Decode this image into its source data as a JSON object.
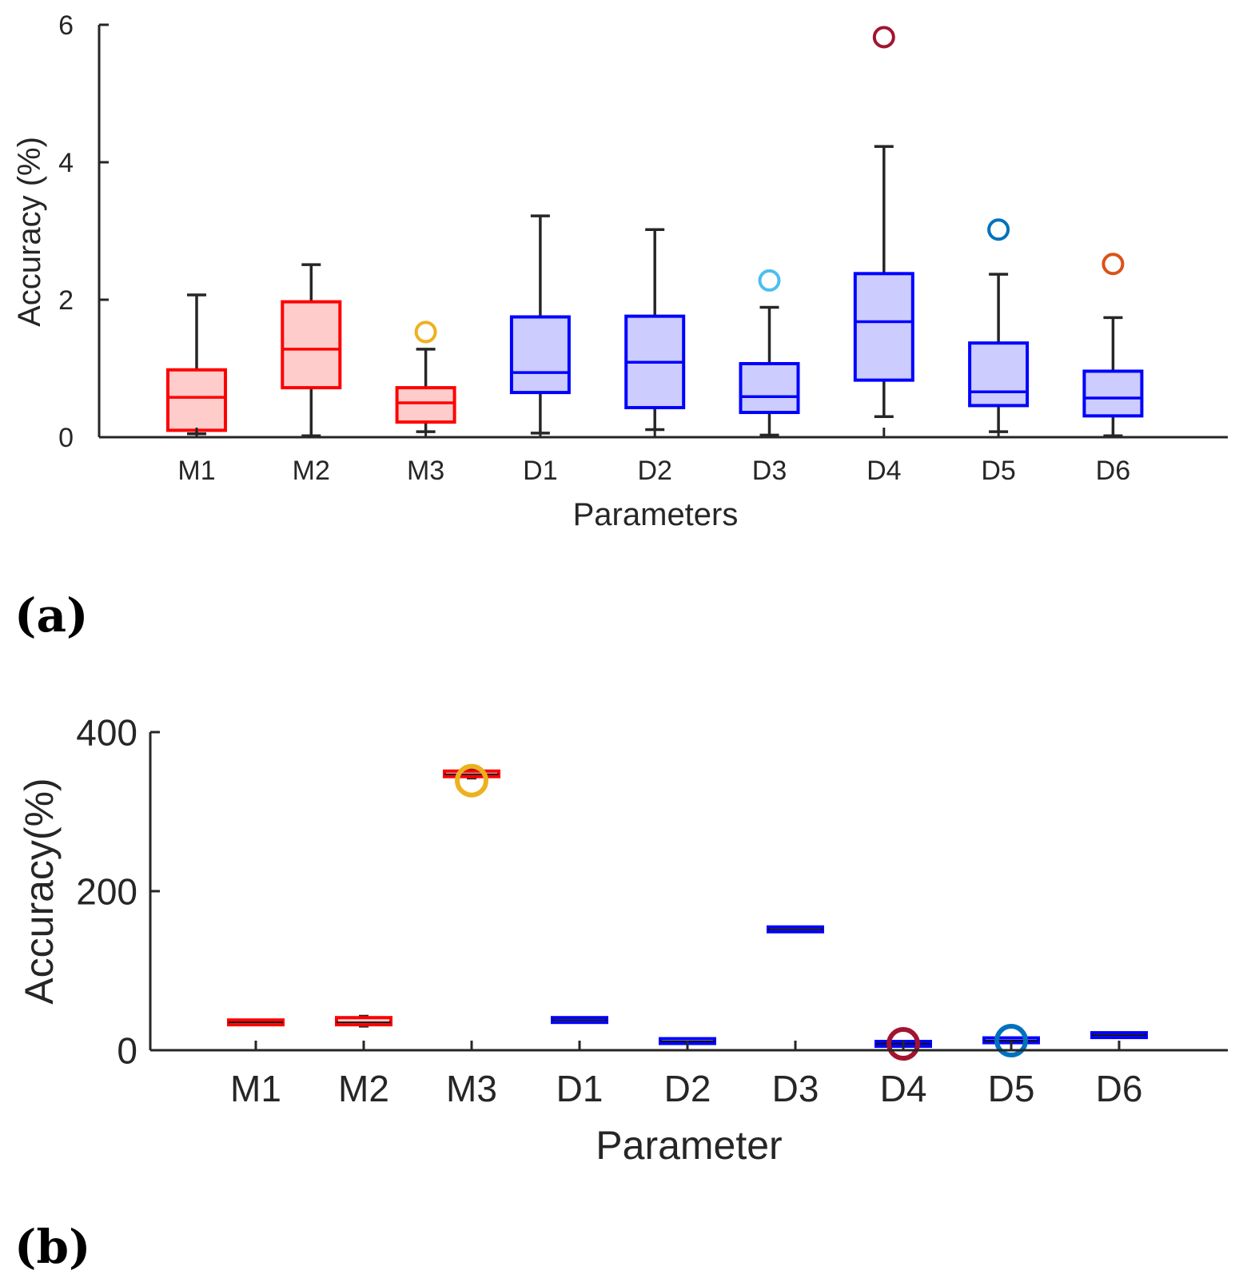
{
  "chart_data": [
    {
      "type": "boxplot",
      "panel_label": "(a)",
      "xlabel": "Parameters",
      "ylabel": "Accuracy (%)",
      "ylim": [
        0,
        6
      ],
      "yticks": [
        "0",
        "2",
        "4",
        "6"
      ],
      "categories": [
        "M1",
        "M2",
        "M3",
        "D1",
        "D2",
        "D3",
        "D4",
        "D5",
        "D6"
      ],
      "boxes": [
        {
          "label": "M1",
          "whisker_low": 0.05,
          "q1": 0.1,
          "median": 0.58,
          "q3": 0.98,
          "whisker_high": 2.07,
          "outliers": [],
          "group": "M"
        },
        {
          "label": "M2",
          "whisker_low": 0.02,
          "q1": 0.72,
          "median": 1.28,
          "q3": 1.97,
          "whisker_high": 2.51,
          "outliers": [],
          "group": "M"
        },
        {
          "label": "M3",
          "whisker_low": 0.08,
          "q1": 0.22,
          "median": 0.5,
          "q3": 0.72,
          "whisker_high": 1.28,
          "outliers": [
            1.53
          ],
          "outlier_color": "#EDB120",
          "group": "M"
        },
        {
          "label": "D1",
          "whisker_low": 0.06,
          "q1": 0.65,
          "median": 0.94,
          "q3": 1.75,
          "whisker_high": 3.22,
          "outliers": [],
          "group": "D"
        },
        {
          "label": "D2",
          "whisker_low": 0.11,
          "q1": 0.43,
          "median": 1.09,
          "q3": 1.76,
          "whisker_high": 3.02,
          "outliers": [],
          "group": "D"
        },
        {
          "label": "D3",
          "whisker_low": 0.03,
          "q1": 0.36,
          "median": 0.59,
          "q3": 1.07,
          "whisker_high": 1.89,
          "outliers": [
            2.28
          ],
          "outlier_color": "#4DBEEE",
          "group": "D"
        },
        {
          "label": "D4",
          "whisker_low": 0.3,
          "q1": 0.83,
          "median": 1.68,
          "q3": 2.38,
          "whisker_high": 4.23,
          "outliers": [
            5.82
          ],
          "outlier_color": "#A2142F",
          "group": "D"
        },
        {
          "label": "D5",
          "whisker_low": 0.08,
          "q1": 0.46,
          "median": 0.66,
          "q3": 1.37,
          "whisker_high": 2.37,
          "outliers": [
            3.02
          ],
          "outlier_color": "#0072BD",
          "group": "D"
        },
        {
          "label": "D6",
          "whisker_low": 0.02,
          "q1": 0.31,
          "median": 0.57,
          "q3": 0.96,
          "whisker_high": 1.74,
          "outliers": [
            2.52
          ],
          "outlier_color": "#D95319",
          "group": "D"
        }
      ]
    },
    {
      "type": "boxplot",
      "panel_label": "(b)",
      "xlabel": "Parameter",
      "ylabel": "Accuracy(%)",
      "ylim": [
        0,
        400
      ],
      "yticks": [
        "0",
        "200",
        "400"
      ],
      "categories": [
        "M1",
        "M2",
        "M3",
        "D1",
        "D2",
        "D3",
        "D4",
        "D5",
        "D6"
      ],
      "boxes": [
        {
          "label": "M1",
          "whisker_low": 33,
          "q1": 34,
          "median": 35,
          "q3": 36,
          "whisker_high": 37,
          "outliers": [],
          "group": "M"
        },
        {
          "label": "M2",
          "whisker_low": 30,
          "q1": 32,
          "median": 35,
          "q3": 41,
          "whisker_high": 43,
          "outliers": [],
          "group": "M"
        },
        {
          "label": "M3",
          "whisker_low": 342,
          "q1": 344,
          "median": 347,
          "q3": 351,
          "whisker_high": 353,
          "outliers": [
            339
          ],
          "outlier_color": "#EDB120",
          "group": "M"
        },
        {
          "label": "D1",
          "whisker_low": 36,
          "q1": 37,
          "median": 38,
          "q3": 39,
          "whisker_high": 40,
          "outliers": [],
          "group": "D"
        },
        {
          "label": "D2",
          "whisker_low": 9,
          "q1": 10,
          "median": 11,
          "q3": 13,
          "whisker_high": 14,
          "outliers": [],
          "group": "D"
        },
        {
          "label": "D3",
          "whisker_low": 149,
          "q1": 150,
          "median": 152,
          "q3": 154,
          "whisker_high": 155,
          "outliers": [],
          "group": "D"
        },
        {
          "label": "D4",
          "whisker_low": 6,
          "q1": 7,
          "median": 8,
          "q3": 9,
          "whisker_high": 10,
          "outliers": [
            8
          ],
          "outlier_color": "#A2142F",
          "group": "D"
        },
        {
          "label": "D5",
          "whisker_low": 10,
          "q1": 11,
          "median": 12,
          "q3": 14,
          "whisker_high": 15,
          "outliers": [
            12
          ],
          "outlier_color": "#0072BD",
          "group": "D"
        },
        {
          "label": "D6",
          "whisker_low": 17,
          "q1": 18,
          "median": 19,
          "q3": 20,
          "whisker_high": 21,
          "outliers": [],
          "group": "D"
        }
      ]
    }
  ],
  "colors": {
    "m_edge": "#FF0000",
    "m_fill": "#FFCCCC",
    "d_edge": "#0000FF",
    "d_fill": "#CCCCFF",
    "whisker": "#262626",
    "axis": "#262626"
  }
}
